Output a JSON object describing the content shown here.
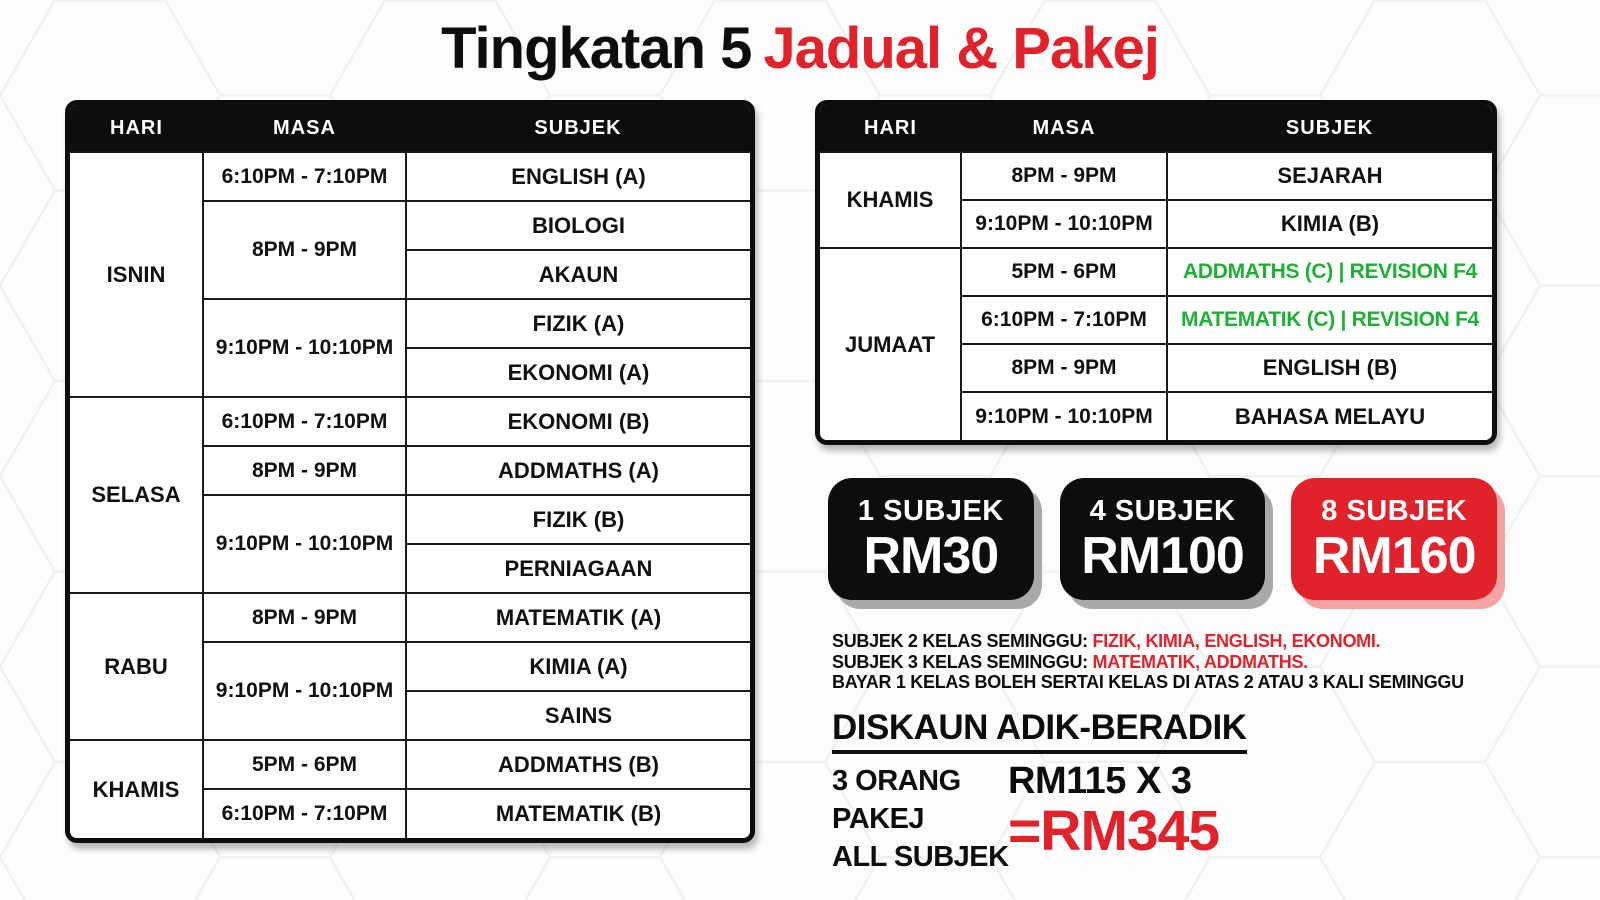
{
  "title": {
    "part_black": "Tingkatan 5",
    "part_red": "Jadual & Pakej"
  },
  "colors": {
    "red": "#E1222B",
    "green": "#1BB234",
    "black": "#0D0D0D",
    "badge_shadow_gray": "#A9A9A9",
    "badge_shadow_pink": "#F4A2A2"
  },
  "tables": [
    {
      "id": "left",
      "headers": [
        "HARI",
        "MASA",
        "SUBJEK"
      ],
      "days": [
        {
          "day": "ISNIN",
          "slots": [
            {
              "time": "6:10PM - 7:10PM",
              "subjects": [
                {
                  "name": "ENGLISH (A)"
                }
              ]
            },
            {
              "time": "8PM - 9PM",
              "subjects": [
                {
                  "name": "BIOLOGI"
                },
                {
                  "name": "AKAUN"
                }
              ]
            },
            {
              "time": "9:10PM - 10:10PM",
              "subjects": [
                {
                  "name": "FIZIK (A)"
                },
                {
                  "name": "EKONOMI (A)"
                }
              ]
            }
          ]
        },
        {
          "day": "SELASA",
          "slots": [
            {
              "time": "6:10PM - 7:10PM",
              "subjects": [
                {
                  "name": "EKONOMI (B)"
                }
              ]
            },
            {
              "time": "8PM - 9PM",
              "subjects": [
                {
                  "name": "ADDMATHS (A)"
                }
              ]
            },
            {
              "time": "9:10PM - 10:10PM",
              "subjects": [
                {
                  "name": "FIZIK (B)"
                },
                {
                  "name": "PERNIAGAAN"
                }
              ]
            }
          ]
        },
        {
          "day": "RABU",
          "slots": [
            {
              "time": "8PM - 9PM",
              "subjects": [
                {
                  "name": "MATEMATIK (A)"
                }
              ]
            },
            {
              "time": "9:10PM - 10:10PM",
              "subjects": [
                {
                  "name": "KIMIA (A)"
                },
                {
                  "name": "SAINS"
                }
              ]
            }
          ]
        },
        {
          "day": "KHAMIS",
          "slots": [
            {
              "time": "5PM - 6PM",
              "subjects": [
                {
                  "name": "ADDMATHS (B)"
                }
              ]
            },
            {
              "time": "6:10PM - 7:10PM",
              "subjects": [
                {
                  "name": "MATEMATIK (B)"
                }
              ]
            }
          ]
        }
      ]
    },
    {
      "id": "right",
      "headers": [
        "HARI",
        "MASA",
        "SUBJEK"
      ],
      "days": [
        {
          "day": "KHAMIS",
          "slots": [
            {
              "time": "8PM - 9PM",
              "subjects": [
                {
                  "name": "SEJARAH"
                }
              ]
            },
            {
              "time": "9:10PM - 10:10PM",
              "subjects": [
                {
                  "name": "KIMIA (B)"
                }
              ]
            }
          ]
        },
        {
          "day": "JUMAAT",
          "slots": [
            {
              "time": "5PM - 6PM",
              "subjects": [
                {
                  "name": "ADDMATHS (C) | REVISION F4",
                  "green": true
                }
              ]
            },
            {
              "time": "6:10PM - 7:10PM",
              "subjects": [
                {
                  "name": "MATEMATIK (C) | REVISION F4",
                  "green": true
                }
              ]
            },
            {
              "time": "8PM - 9PM",
              "subjects": [
                {
                  "name": "ENGLISH (B)"
                }
              ]
            },
            {
              "time": "9:10PM - 10:10PM",
              "subjects": [
                {
                  "name": "BAHASA MELAYU"
                }
              ]
            }
          ]
        }
      ]
    }
  ],
  "packages": [
    {
      "label": "1 SUBJEK",
      "price": "RM30",
      "variant": "black"
    },
    {
      "label": "4 SUBJEK",
      "price": "RM100",
      "variant": "black"
    },
    {
      "label": "8 SUBJEK",
      "price": "RM160",
      "variant": "red"
    }
  ],
  "notes": [
    {
      "prefix": "SUBJEK 2 KELAS SEMINGGU: ",
      "highlight": "FIZIK, KIMIA, ENGLISH, EKONOMI."
    },
    {
      "prefix": "SUBJEK 3 KELAS SEMINGGU: ",
      "highlight": "MATEMATIK, ADDMATHS."
    },
    {
      "prefix": "BAYAR 1 KELAS BOLEH SERTAI KELAS DI ATAS 2 ATAU 3 KALI SEMINGGU",
      "highlight": ""
    }
  ],
  "discount": {
    "heading": "DISKAUN ADIK-BERADIK",
    "package_lines": [
      "3 ORANG",
      "PAKEJ",
      "ALL SUBJEK"
    ],
    "calc": "RM115 X 3",
    "total": "=RM345"
  }
}
